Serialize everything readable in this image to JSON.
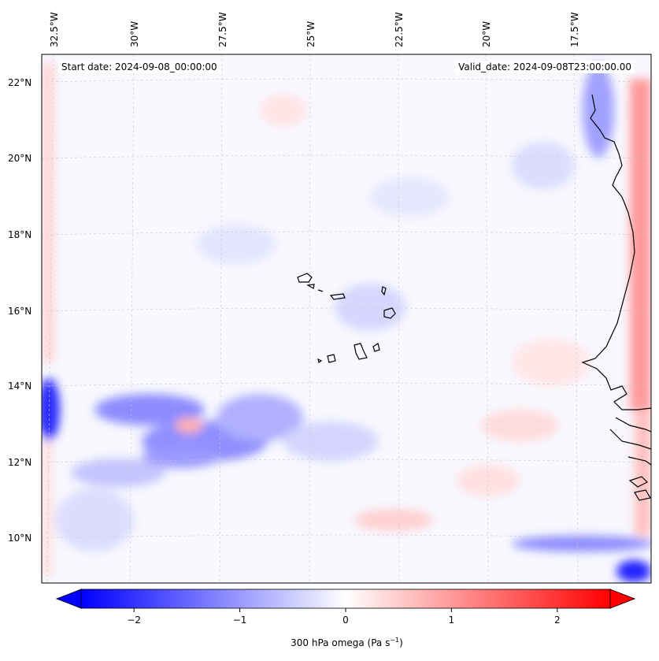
{
  "map": {
    "start_date": "Start date: 2024-09-08_00:00:00",
    "valid_date": "Valid_date: 2024-09-08T23:00:00.00",
    "lon_labels": [
      "32.5°W",
      "30°W",
      "27.5°W",
      "25°W",
      "22.5°W",
      "20°W",
      "17.5°W"
    ],
    "lat_labels": [
      "22°N",
      "20°N",
      "18°N",
      "16°N",
      "14°N",
      "12°N",
      "10°N"
    ],
    "gridlines": true,
    "coastline_color": "#000000",
    "features": [
      "Cabo Verde islands",
      "West African coast"
    ]
  },
  "colorbar": {
    "label": "300 hPa omega (Pa s",
    "label_sup": "−1",
    "label_end": ")",
    "ticks": [
      "−2",
      "−1",
      "0",
      "1",
      "2"
    ],
    "tick_values": [
      -2,
      -1,
      0,
      1,
      2
    ],
    "range": [
      -2.5,
      2.5
    ],
    "extend": "both",
    "cmap": "bwr",
    "low_color": "#0000ff",
    "mid_color": "#ffffff",
    "high_color": "#ff0000"
  }
}
